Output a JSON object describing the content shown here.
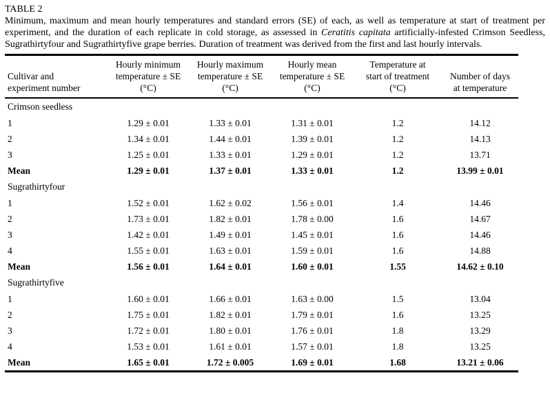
{
  "page": {
    "table_label": "TABLE 2"
  },
  "caption": {
    "text_before_species": "Minimum, maximum and mean hourly temperatures and standard errors (SE) of each, as well as temperature at start of treatment per experiment, and the duration of each replicate in cold storage, as assessed in ",
    "species_italic": "Ceratitis capitata",
    "text_after_species": " artificially-infested Crimson Seedless, Sugrathirtyfour and Sugrathirtyfive grape berries. Duration of treatment was derived from the first and last hourly intervals."
  },
  "table": {
    "columns": [
      "Cultivar and\nexperiment number",
      "Hourly minimum\ntemperature ± SE\n(°C)",
      "Hourly maximum\ntemperature ± SE\n(°C)",
      "Hourly mean\ntemperature ± SE\n(°C)",
      "Temperature at\nstart of treatment\n(°C)",
      "Number of days\nat temperature"
    ],
    "sections": [
      {
        "name": "Crimson seedless",
        "rows": [
          {
            "label": "1",
            "values": [
              "1.29 ± 0.01",
              "1.33 ± 0.01",
              "1.31 ± 0.01",
              "1.2",
              "14.12"
            ],
            "bold": false
          },
          {
            "label": "2",
            "values": [
              "1.34 ± 0.01",
              "1.44 ± 0.01",
              "1.39 ± 0.01",
              "1.2",
              "14.13"
            ],
            "bold": false
          },
          {
            "label": "3",
            "values": [
              "1.25 ± 0.01",
              "1.33 ± 0.01",
              "1.29 ± 0.01",
              "1.2",
              "13.71"
            ],
            "bold": false
          },
          {
            "label": "Mean",
            "values": [
              "1.29 ± 0.01",
              "1.37 ± 0.01",
              "1.33 ± 0.01",
              "1.2",
              "13.99 ± 0.01"
            ],
            "bold": true
          }
        ]
      },
      {
        "name": "Sugrathirtyfour",
        "rows": [
          {
            "label": "1",
            "values": [
              "1.52 ± 0.01",
              "1.62 ± 0.02",
              "1.56 ± 0.01",
              "1.4",
              "14.46"
            ],
            "bold": false
          },
          {
            "label": "2",
            "values": [
              "1.73 ± 0.01",
              "1.82 ± 0.01",
              "1.78 ± 0.00",
              "1.6",
              "14.67"
            ],
            "bold": false
          },
          {
            "label": "3",
            "values": [
              "1.42 ± 0.01",
              "1.49 ± 0.01",
              "1.45 ± 0.01",
              "1.6",
              "14.46"
            ],
            "bold": false
          },
          {
            "label": "4",
            "values": [
              "1.55 ± 0.01",
              "1.63 ± 0.01",
              "1.59 ± 0.01",
              "1.6",
              "14.88"
            ],
            "bold": false
          },
          {
            "label": "Mean",
            "values": [
              "1.56 ± 0.01",
              "1.64 ± 0.01",
              "1.60 ± 0.01",
              "1.55",
              "14.62 ± 0.10"
            ],
            "bold": true
          }
        ]
      },
      {
        "name": "Sugrathirtyfive",
        "rows": [
          {
            "label": "1",
            "values": [
              "1.60 ± 0.01",
              "1.66 ± 0.01",
              "1.63 ± 0.00",
              "1.5",
              "13.04"
            ],
            "bold": false
          },
          {
            "label": "2",
            "values": [
              "1.75 ± 0.01",
              "1.82 ± 0.01",
              "1.79 ± 0.01",
              "1.6",
              "13.25"
            ],
            "bold": false
          },
          {
            "label": "3",
            "values": [
              "1.72 ± 0.01",
              "1.80 ± 0.01",
              "1.76 ± 0.01",
              "1.8",
              "13.29"
            ],
            "bold": false
          },
          {
            "label": "4",
            "values": [
              "1.53 ± 0.01",
              "1.61 ± 0.01",
              "1.57 ± 0.01",
              "1.8",
              "13.25"
            ],
            "bold": false
          },
          {
            "label": "Mean",
            "values": [
              "1.65 ± 0.01",
              "1.72 ± 0.005",
              "1.69 ± 0.01",
              "1.68",
              "13.21 ± 0.06"
            ],
            "bold": true
          }
        ]
      }
    ]
  }
}
